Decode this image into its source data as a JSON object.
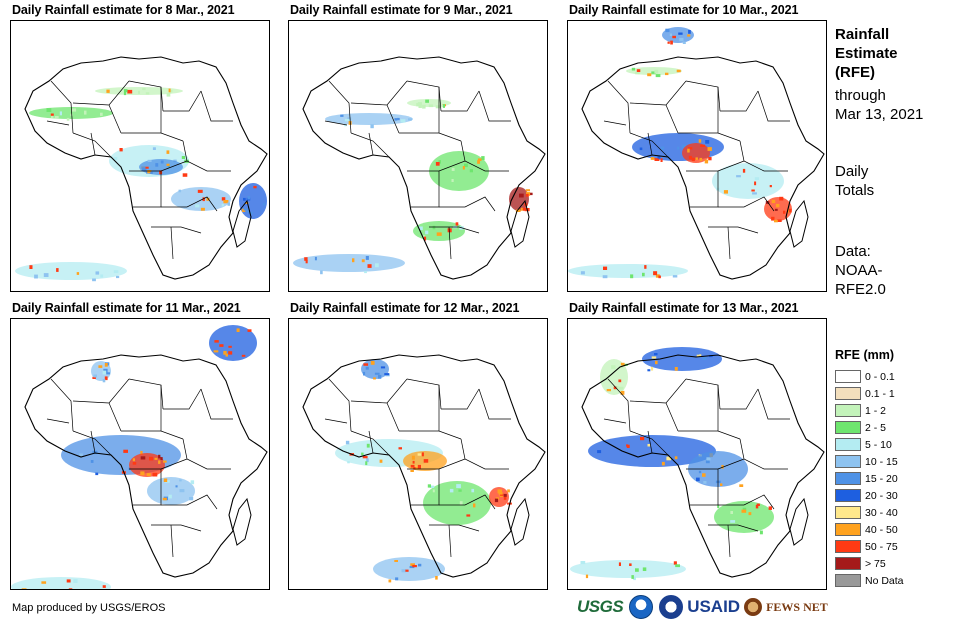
{
  "panels": [
    {
      "title": "Daily Rainfall estimate for 8 Mar., 2021"
    },
    {
      "title": "Daily Rainfall estimate for 9 Mar., 2021"
    },
    {
      "title": "Daily Rainfall estimate for 10 Mar., 2021"
    },
    {
      "title": "Daily Rainfall estimate for 11 Mar., 2021"
    },
    {
      "title": "Daily Rainfall estimate for 12 Mar., 2021"
    },
    {
      "title": "Daily Rainfall estimate for 13 Mar., 2021"
    }
  ],
  "side": {
    "title_lines": [
      "Rainfall",
      "Estimate",
      "(RFE)"
    ],
    "through_lines": [
      "through",
      "Mar 13, 2021"
    ],
    "totals_lines": [
      "Daily",
      "Totals"
    ],
    "data_lines": [
      "Data:",
      "NOAA-",
      "RFE2.0"
    ]
  },
  "legend": {
    "title": "RFE (mm)",
    "items": [
      {
        "label": "0 - 0.1",
        "color": "#ffffff"
      },
      {
        "label": "0.1 - 1",
        "color": "#f3dfbd"
      },
      {
        "label": "1 - 2",
        "color": "#c3f3ba"
      },
      {
        "label": "2 - 5",
        "color": "#6ee56e"
      },
      {
        "label": "5 - 10",
        "color": "#b4ecf2"
      },
      {
        "label": "10 - 15",
        "color": "#8ec3f0"
      },
      {
        "label": "15 - 20",
        "color": "#4f92e6"
      },
      {
        "label": "20 - 30",
        "color": "#1e5fe0"
      },
      {
        "label": "30 - 40",
        "color": "#ffe88c"
      },
      {
        "label": "40 - 50",
        "color": "#ffa21e"
      },
      {
        "label": "50 - 75",
        "color": "#ff3a14"
      },
      {
        "label": "> 75",
        "color": "#a51a1a"
      },
      {
        "label": "No Data",
        "color": "#999999"
      }
    ]
  },
  "credit": "Map produced by USGS/EROS",
  "logos": {
    "usgs": "USGS",
    "usaid": "USAID",
    "fews": "FEWS NET"
  }
}
